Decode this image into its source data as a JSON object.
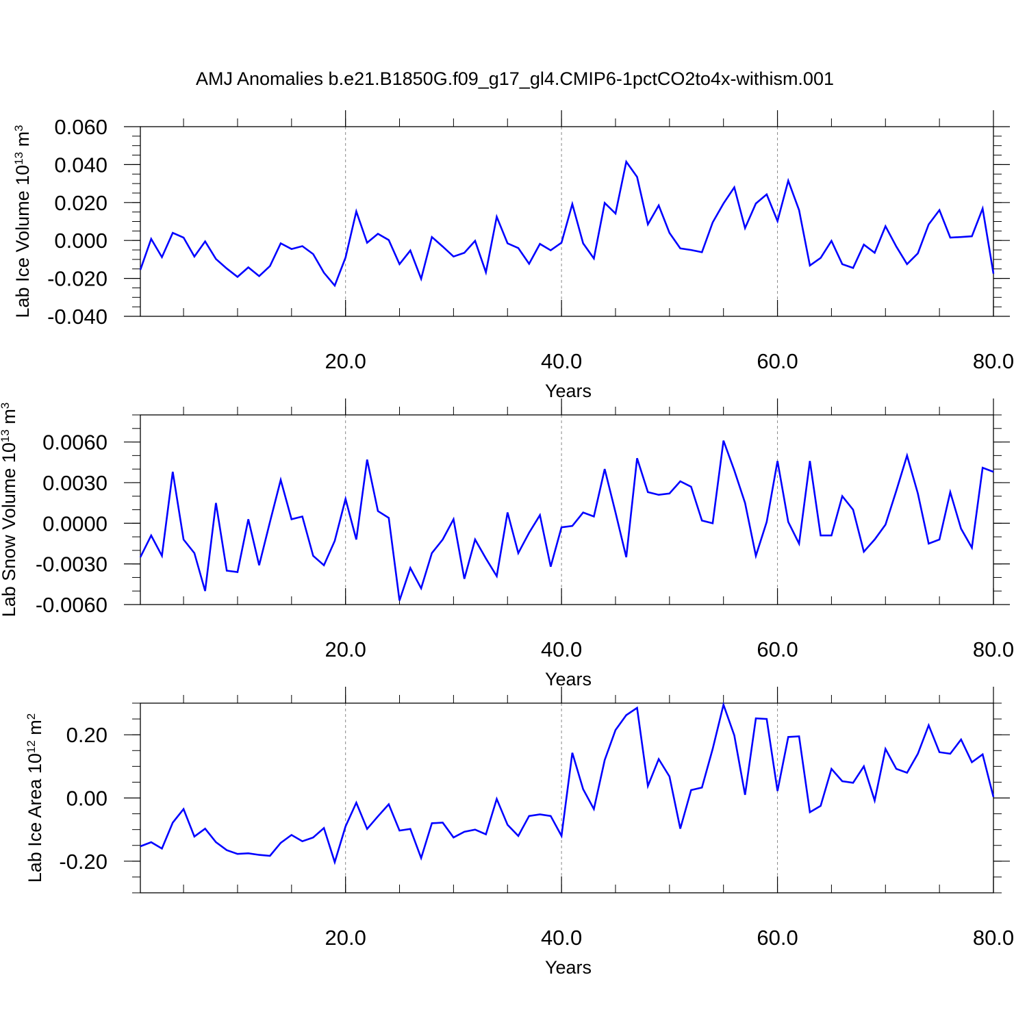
{
  "title": "AMJ Anomalies b.e21.B1850G.f09_g17_gl4.CMIP6-1pctCO2to4x-withism.001",
  "colors": {
    "line": "#0000ff",
    "axes": "#000000",
    "grid": "#888888",
    "background": "#ffffff"
  },
  "chart_data": [
    {
      "type": "line",
      "ylabel_text": "Lab Ice Volume 10",
      "ylabel_exp": "13",
      "ylabel_unit": " m",
      "ylabel_unit_exp": "3",
      "xlabel": "Years",
      "xlim": [
        1,
        80
      ],
      "ylim": [
        -0.04,
        0.06
      ],
      "yticks": [
        -0.04,
        -0.02,
        0.0,
        0.02,
        0.04,
        0.06
      ],
      "ytick_labels": [
        "-0.040",
        "-0.020",
        "0.000",
        "0.020",
        "0.040",
        "0.060"
      ],
      "yminor": 0.005,
      "xticks": [
        20,
        40,
        60,
        80
      ],
      "xtick_labels": [
        "20.0",
        "40.0",
        "60.0",
        "80.0"
      ],
      "grid_x": [
        20,
        40,
        60
      ],
      "series": [
        {
          "x": [
            1,
            2,
            3,
            4,
            5,
            6,
            7,
            8,
            9,
            10,
            11,
            12,
            13,
            14,
            15,
            16,
            17,
            18,
            19,
            20,
            21,
            22,
            23,
            24,
            25,
            26,
            27,
            28,
            29,
            30,
            31,
            32,
            33,
            34,
            35,
            36,
            37,
            38,
            39,
            40,
            41,
            42,
            43,
            44,
            45,
            46,
            47,
            48,
            49,
            50,
            51,
            52,
            53,
            54,
            55,
            56,
            57,
            58,
            59,
            60,
            61,
            62,
            63,
            64,
            65,
            66,
            67,
            68,
            69,
            70,
            71,
            72,
            73,
            74,
            75,
            76,
            77,
            78,
            79,
            80
          ],
          "values": [
            -0.0155,
            0.0008,
            -0.0088,
            0.004,
            0.0015,
            -0.0085,
            -0.0005,
            -0.0098,
            -0.0148,
            -0.0192,
            -0.0142,
            -0.0188,
            -0.0135,
            -0.0015,
            -0.0045,
            -0.003,
            -0.0072,
            -0.017,
            -0.0238,
            -0.009,
            0.0153,
            -0.0012,
            0.0035,
            0.0002,
            -0.0125,
            -0.0053,
            -0.0202,
            0.0018,
            -0.0032,
            -0.0085,
            -0.0065,
            -0.0002,
            -0.0168,
            0.0125,
            -0.0015,
            -0.004,
            -0.0123,
            -0.0018,
            -0.0052,
            -0.0012,
            0.0192,
            -0.0015,
            -0.0095,
            0.0198,
            0.0142,
            0.0415,
            0.0335,
            0.0085,
            0.0185,
            0.004,
            -0.0042,
            -0.005,
            -0.0062,
            0.0095,
            0.0195,
            0.028,
            0.0065,
            0.0195,
            0.0243,
            0.0102,
            0.0315,
            0.016,
            -0.0132,
            -0.0092,
            -0.0002,
            -0.0125,
            -0.0145,
            -0.0022,
            -0.0065,
            0.0075,
            -0.0032,
            -0.0125,
            -0.0068,
            0.0085,
            0.016,
            0.0015,
            0.0018,
            0.0022,
            0.0168,
            -0.0175
          ]
        }
      ]
    },
    {
      "type": "line",
      "ylabel_text": "Lab Snow Volume 10",
      "ylabel_exp": "13",
      "ylabel_unit": " m",
      "ylabel_unit_exp": "3",
      "xlabel": "Years",
      "xlim": [
        1,
        80
      ],
      "ylim": [
        -0.006,
        0.008
      ],
      "yticks": [
        -0.006,
        -0.003,
        0.0,
        0.003,
        0.006
      ],
      "ytick_labels": [
        "-0.0060",
        "-0.0030",
        "0.0000",
        "0.0030",
        "0.0060"
      ],
      "yminor": 0.001,
      "xticks": [
        20,
        40,
        60,
        80
      ],
      "xtick_labels": [
        "20.0",
        "40.0",
        "60.0",
        "80.0"
      ],
      "grid_x": [
        20,
        40,
        60
      ],
      "series": [
        {
          "x": [
            1,
            2,
            3,
            4,
            5,
            6,
            7,
            8,
            9,
            10,
            11,
            12,
            13,
            14,
            15,
            16,
            17,
            18,
            19,
            20,
            21,
            22,
            23,
            24,
            25,
            26,
            27,
            28,
            29,
            30,
            31,
            32,
            33,
            34,
            35,
            36,
            37,
            38,
            39,
            40,
            41,
            42,
            43,
            44,
            45,
            46,
            47,
            48,
            49,
            50,
            51,
            52,
            53,
            54,
            55,
            56,
            57,
            58,
            59,
            60,
            61,
            62,
            63,
            64,
            65,
            66,
            67,
            68,
            69,
            70,
            71,
            72,
            73,
            74,
            75,
            76,
            77,
            78,
            79,
            80
          ],
          "values": [
            -0.0025,
            -0.0009,
            -0.0024,
            0.0038,
            -0.0012,
            -0.0022,
            -0.005,
            0.0015,
            -0.0035,
            -0.0036,
            0.0003,
            -0.0031,
            0.0001,
            0.0032,
            0.0003,
            0.0005,
            -0.0024,
            -0.0031,
            -0.0013,
            0.0018,
            -0.0012,
            0.0047,
            0.0009,
            0.0004,
            -0.0057,
            -0.0033,
            -0.0048,
            -0.0022,
            -0.0012,
            0.0003,
            -0.0041,
            -0.0012,
            -0.0026,
            -0.0039,
            0.0008,
            -0.0022,
            -0.0007,
            0.0006,
            -0.0032,
            -0.0003,
            -0.0002,
            0.0008,
            0.0005,
            0.004,
            0.0008,
            -0.0025,
            0.0048,
            0.0023,
            0.0021,
            0.0022,
            0.0031,
            0.0027,
            0.0002,
            0.0,
            0.0061,
            0.0039,
            0.0015,
            -0.0024,
            0.0001,
            0.0046,
            0.0001,
            -0.0015,
            0.0046,
            -0.0009,
            -0.0009,
            0.002,
            0.001,
            -0.0021,
            -0.0012,
            -0.0001,
            0.0024,
            0.005,
            0.0022,
            -0.0015,
            -0.0012,
            0.0023,
            -0.0004,
            -0.0018,
            0.0041,
            0.0038
          ]
        }
      ]
    },
    {
      "type": "line",
      "ylabel_text": "Lab Ice Area 10",
      "ylabel_exp": "12",
      "ylabel_unit": " m",
      "ylabel_unit_exp": "2",
      "xlabel": "Years",
      "xlim": [
        1,
        80
      ],
      "ylim": [
        -0.3,
        0.3
      ],
      "yticks": [
        -0.2,
        0.0,
        0.2
      ],
      "ytick_labels": [
        "-0.20",
        "0.00",
        "0.20"
      ],
      "yminor": 0.05,
      "xticks": [
        20,
        40,
        60,
        80
      ],
      "xtick_labels": [
        "20.0",
        "40.0",
        "60.0",
        "80.0"
      ],
      "grid_x": [
        20,
        40,
        60
      ],
      "series": [
        {
          "x": [
            1,
            2,
            3,
            4,
            5,
            6,
            7,
            8,
            9,
            10,
            11,
            12,
            13,
            14,
            15,
            16,
            17,
            18,
            19,
            20,
            21,
            22,
            23,
            24,
            25,
            26,
            27,
            28,
            29,
            30,
            31,
            32,
            33,
            34,
            35,
            36,
            37,
            38,
            39,
            40,
            41,
            42,
            43,
            44,
            45,
            46,
            47,
            48,
            49,
            50,
            51,
            52,
            53,
            54,
            55,
            56,
            57,
            58,
            59,
            60,
            61,
            62,
            63,
            64,
            65,
            66,
            67,
            68,
            69,
            70,
            71,
            72,
            73,
            74,
            75,
            76,
            77,
            78,
            79,
            80
          ],
          "values": [
            -0.153,
            -0.14,
            -0.16,
            -0.078,
            -0.035,
            -0.122,
            -0.097,
            -0.14,
            -0.165,
            -0.177,
            -0.175,
            -0.18,
            -0.183,
            -0.142,
            -0.117,
            -0.137,
            -0.125,
            -0.095,
            -0.203,
            -0.09,
            -0.015,
            -0.098,
            -0.058,
            -0.02,
            -0.103,
            -0.098,
            -0.19,
            -0.08,
            -0.078,
            -0.125,
            -0.107,
            -0.1,
            -0.115,
            -0.003,
            -0.085,
            -0.12,
            -0.057,
            -0.052,
            -0.057,
            -0.12,
            0.143,
            0.028,
            -0.035,
            0.12,
            0.215,
            0.262,
            0.285,
            0.038,
            0.123,
            0.068,
            -0.097,
            0.025,
            0.033,
            0.155,
            0.295,
            0.198,
            0.01,
            0.252,
            0.25,
            0.022,
            0.193,
            0.195,
            -0.045,
            -0.025,
            0.092,
            0.053,
            0.048,
            0.1,
            -0.008,
            0.155,
            0.092,
            0.08,
            0.14,
            0.23,
            0.145,
            0.14,
            0.185,
            0.113,
            0.138,
            0.003
          ]
        }
      ]
    }
  ]
}
